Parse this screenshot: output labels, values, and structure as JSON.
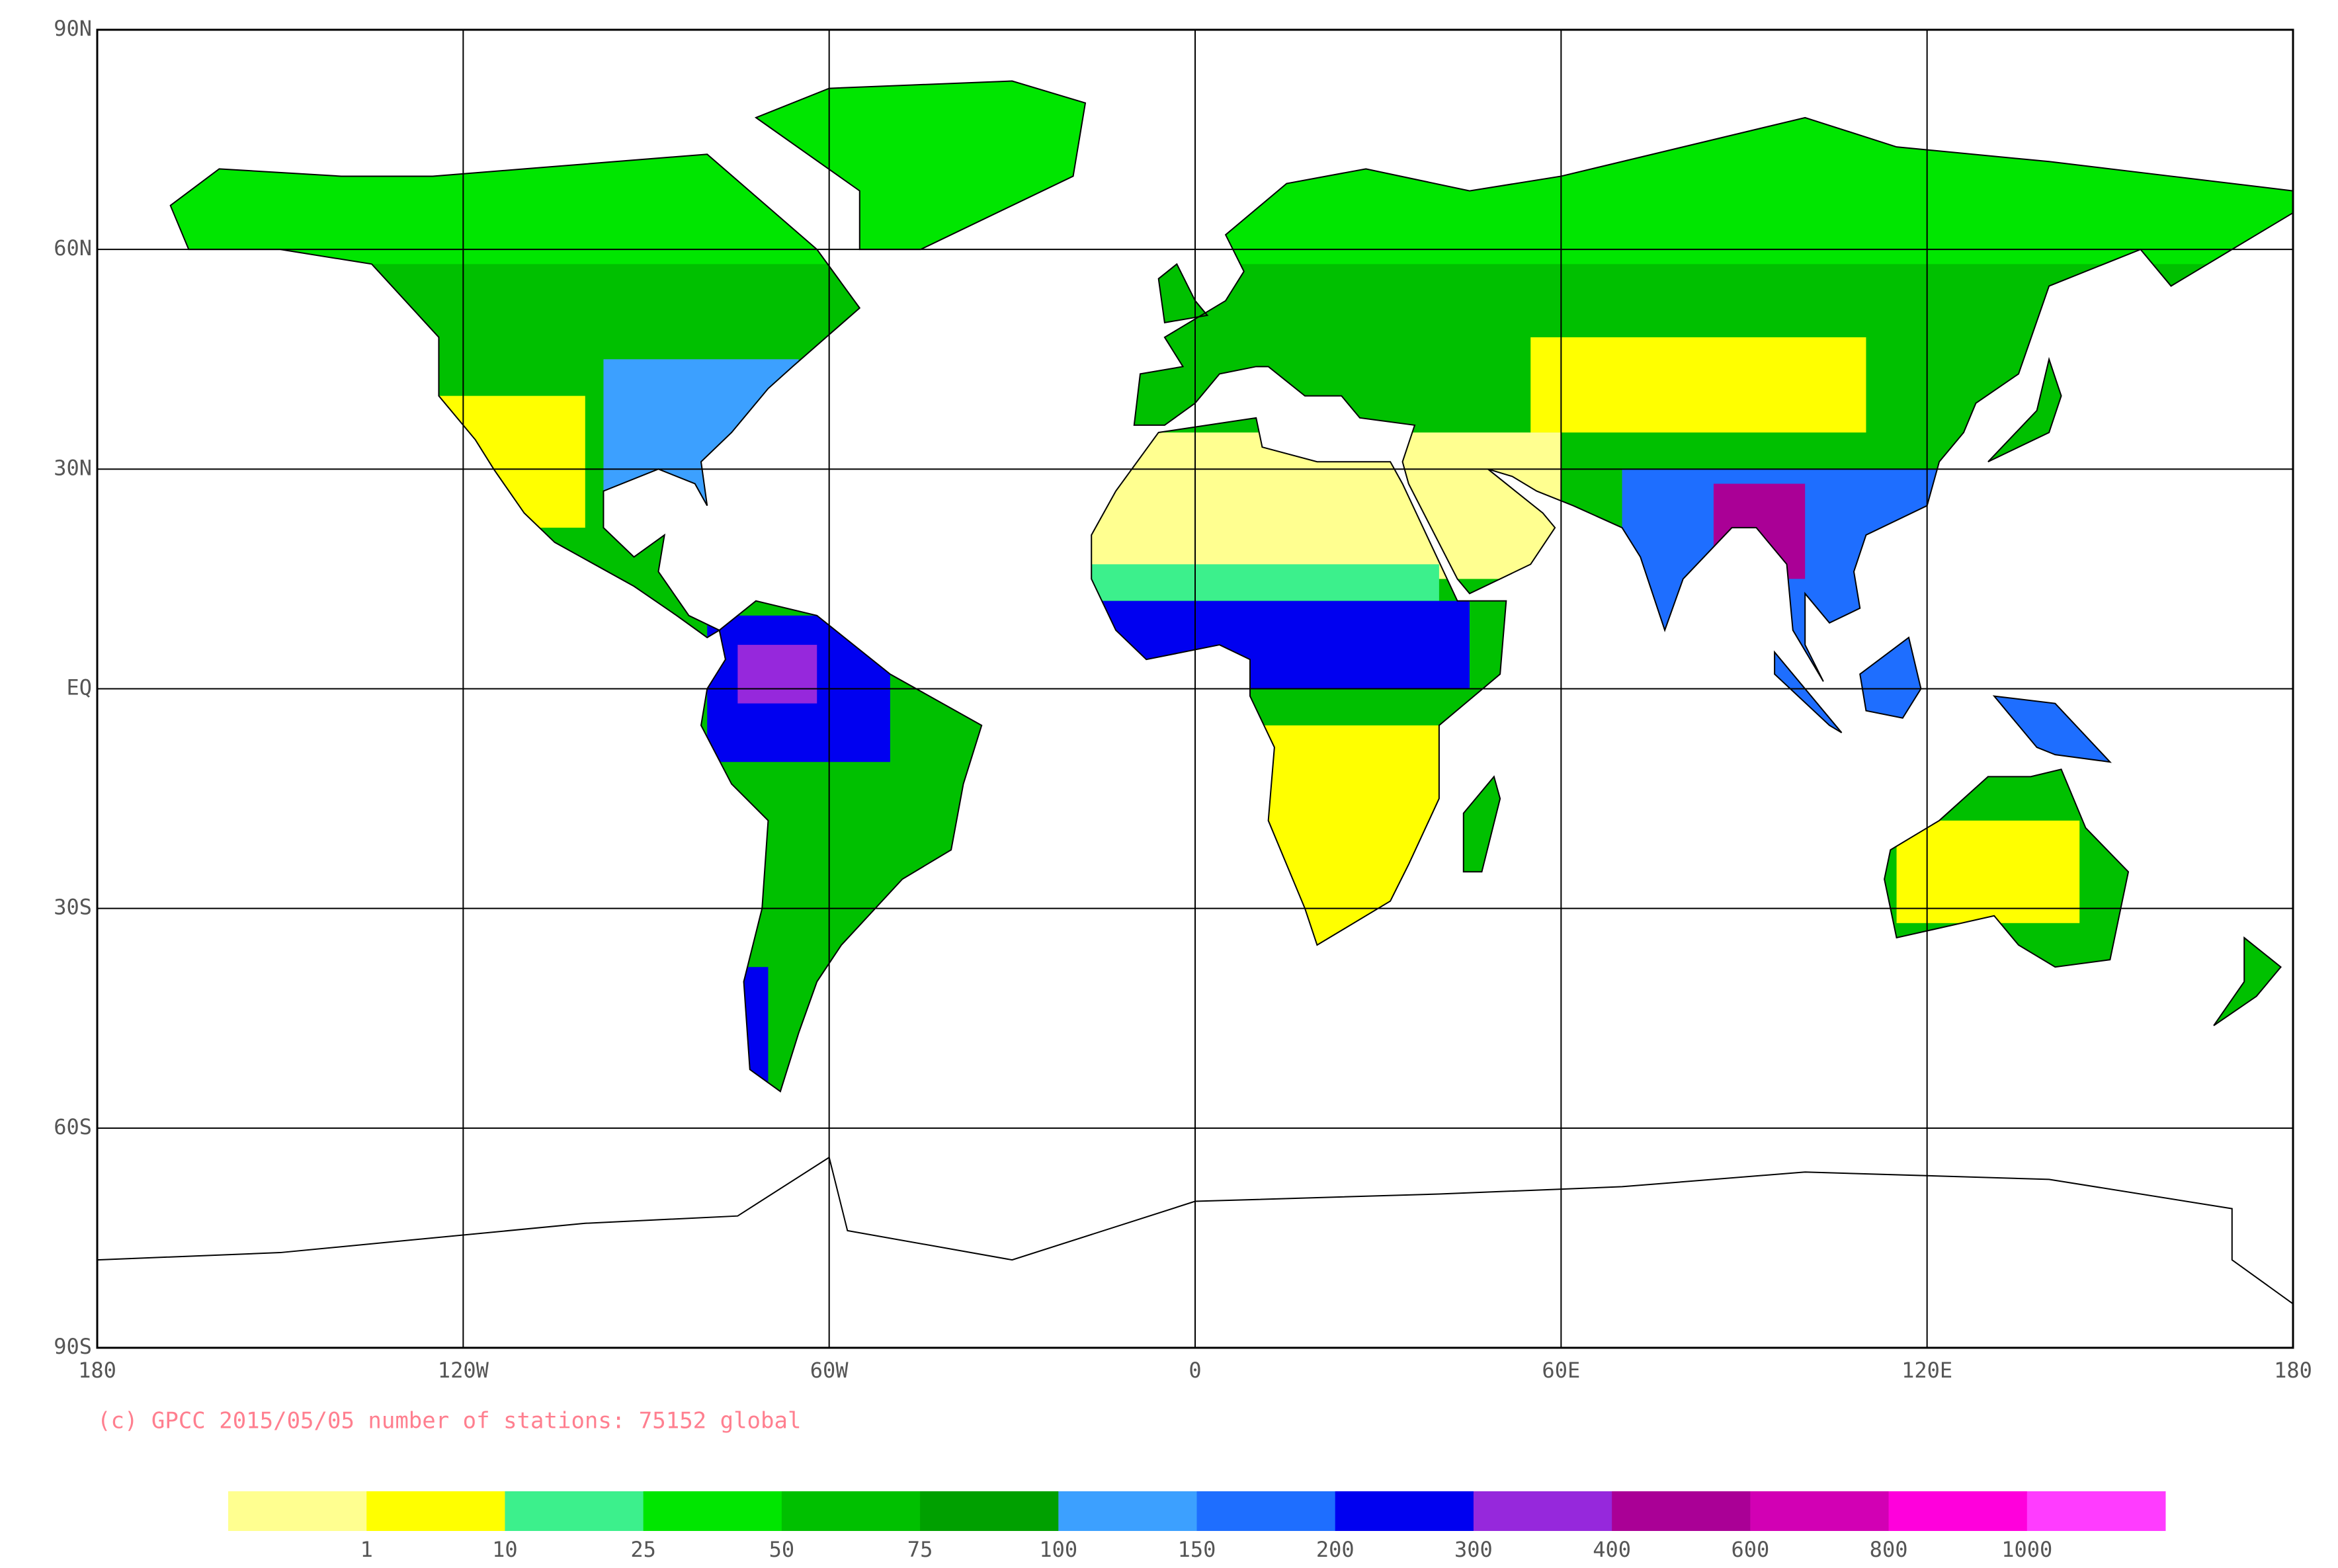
{
  "chart_data": {
    "type": "map",
    "xlim": [
      -180,
      180
    ],
    "ylim": [
      -90,
      90
    ],
    "xticks": [
      {
        "value": -180,
        "label": "180"
      },
      {
        "value": -120,
        "label": "120W"
      },
      {
        "value": -60,
        "label": "60W"
      },
      0,
      {
        "value": 60,
        "label": "60E"
      },
      {
        "value": 120,
        "label": "120E"
      },
      {
        "value": 180,
        "label": "180"
      }
    ],
    "yticks": [
      {
        "value": 90,
        "label": "90N"
      },
      {
        "value": 60,
        "label": "60N"
      },
      {
        "value": 30,
        "label": "30N"
      },
      {
        "value": 0,
        "label": "EQ"
      },
      {
        "value": -30,
        "label": "30S"
      },
      {
        "value": -60,
        "label": "60S"
      },
      {
        "value": -90,
        "label": "90S"
      }
    ],
    "grid": true,
    "credit": "(c) GPCC 2015/05/05 number of stations: 75152 global",
    "colorbar": {
      "labels": [
        1,
        10,
        25,
        50,
        75,
        100,
        150,
        200,
        300,
        400,
        600,
        800,
        1000
      ],
      "colors": [
        "#ffff90",
        "#ffff00",
        "#3cf08c",
        "#00e600",
        "#00c000",
        "#00a000",
        "#3ca0ff",
        "#1e6eff",
        "#0000f0",
        "#9628dc",
        "#aa0096",
        "#d200b4",
        "#ff00dc",
        "#ff3cff"
      ]
    }
  }
}
